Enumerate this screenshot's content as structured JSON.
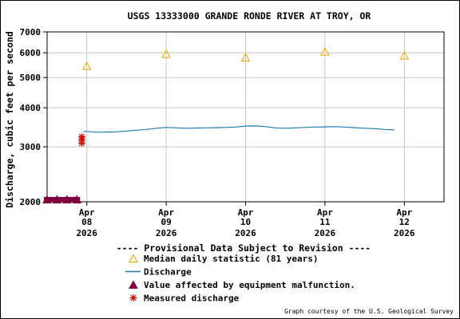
{
  "chart_data": {
    "type": "line",
    "title": "USGS 13333000 GRANDE RONDE RIVER AT TROY, OR",
    "ylabel": "Discharge, cubic feet per second",
    "xlabel": "",
    "y_scale": "log",
    "ylim": [
      2000,
      7000
    ],
    "yticks": [
      {
        "value": 2000,
        "label": "2000"
      },
      {
        "value": 3000,
        "label": "3000"
      },
      {
        "value": 4000,
        "label": "4000"
      },
      {
        "value": 5000,
        "label": "5000"
      },
      {
        "value": 6000,
        "label": "6000"
      },
      {
        "value": 7000,
        "label": "7000"
      }
    ],
    "xlim": [
      "2026-04-07T12:00",
      "2026-04-12T12:00"
    ],
    "xticks": [
      {
        "date": "2026-04-08",
        "month": "Apr",
        "day": "08",
        "year": "2026"
      },
      {
        "date": "2026-04-09",
        "month": "Apr",
        "day": "09",
        "year": "2026"
      },
      {
        "date": "2026-04-10",
        "month": "Apr",
        "day": "10",
        "year": "2026"
      },
      {
        "date": "2026-04-11",
        "month": "Apr",
        "day": "11",
        "year": "2026"
      },
      {
        "date": "2026-04-12",
        "month": "Apr",
        "day": "12",
        "year": "2026"
      }
    ],
    "grid": true,
    "series": [
      {
        "name": "Median daily statistic (81 years)",
        "marker": "triangle-open",
        "color": "#e8a000",
        "points": [
          {
            "x": "2026-04-08",
            "y": 5450
          },
          {
            "x": "2026-04-09",
            "y": 5950
          },
          {
            "x": "2026-04-10",
            "y": 5800
          },
          {
            "x": "2026-04-11",
            "y": 6050
          },
          {
            "x": "2026-04-12",
            "y": 5880
          }
        ]
      },
      {
        "name": "Discharge",
        "marker": "line",
        "color": "#1a7ab5",
        "points": [
          {
            "x": "2026-04-07T23:00",
            "y": 3360
          },
          {
            "x": "2026-04-08T00:00",
            "y": 3360
          },
          {
            "x": "2026-04-08T03:00",
            "y": 3340
          },
          {
            "x": "2026-04-08T06:00",
            "y": 3345
          },
          {
            "x": "2026-04-08T09:00",
            "y": 3350
          },
          {
            "x": "2026-04-08T12:00",
            "y": 3370
          },
          {
            "x": "2026-04-08T15:00",
            "y": 3390
          },
          {
            "x": "2026-04-08T18:00",
            "y": 3410
          },
          {
            "x": "2026-04-08T21:00",
            "y": 3440
          },
          {
            "x": "2026-04-09T00:00",
            "y": 3460
          },
          {
            "x": "2026-04-09T03:00",
            "y": 3450
          },
          {
            "x": "2026-04-09T06:00",
            "y": 3440
          },
          {
            "x": "2026-04-09T09:00",
            "y": 3445
          },
          {
            "x": "2026-04-09T12:00",
            "y": 3450
          },
          {
            "x": "2026-04-09T15:00",
            "y": 3455
          },
          {
            "x": "2026-04-09T18:00",
            "y": 3460
          },
          {
            "x": "2026-04-09T21:00",
            "y": 3470
          },
          {
            "x": "2026-04-10T00:00",
            "y": 3495
          },
          {
            "x": "2026-04-10T03:00",
            "y": 3500
          },
          {
            "x": "2026-04-10T06:00",
            "y": 3480
          },
          {
            "x": "2026-04-10T09:00",
            "y": 3450
          },
          {
            "x": "2026-04-10T12:00",
            "y": 3440
          },
          {
            "x": "2026-04-10T15:00",
            "y": 3450
          },
          {
            "x": "2026-04-10T18:00",
            "y": 3460
          },
          {
            "x": "2026-04-10T21:00",
            "y": 3470
          },
          {
            "x": "2026-04-11T00:00",
            "y": 3475
          },
          {
            "x": "2026-04-11T03:00",
            "y": 3480
          },
          {
            "x": "2026-04-11T06:00",
            "y": 3470
          },
          {
            "x": "2026-04-11T09:00",
            "y": 3455
          },
          {
            "x": "2026-04-11T12:00",
            "y": 3440
          },
          {
            "x": "2026-04-11T15:00",
            "y": 3430
          },
          {
            "x": "2026-04-11T18:00",
            "y": 3410
          },
          {
            "x": "2026-04-11T21:00",
            "y": 3400
          }
        ]
      },
      {
        "name": "Value affected by equipment malfunction.",
        "marker": "triangle-filled",
        "color": "#800040",
        "points": [
          {
            "x": "2026-04-07T12:00",
            "y": 2000
          },
          {
            "x": "2026-04-07T15:00",
            "y": 2000
          },
          {
            "x": "2026-04-07T18:00",
            "y": 2000
          },
          {
            "x": "2026-04-07T21:00",
            "y": 2000
          }
        ]
      },
      {
        "name": "Measured discharge",
        "marker": "asterisk",
        "color": "#cc0000",
        "points": [
          {
            "x": "2026-04-07T22:30",
            "y": 3230
          },
          {
            "x": "2026-04-07T22:30",
            "y": 3160
          },
          {
            "x": "2026-04-07T22:30",
            "y": 3080
          }
        ]
      }
    ],
    "provisional_note": "---- Provisional Data Subject to Revision ----",
    "provisional_color": "#cc0000",
    "credit": "Graph courtesy of the U.S. Geological Survey"
  }
}
